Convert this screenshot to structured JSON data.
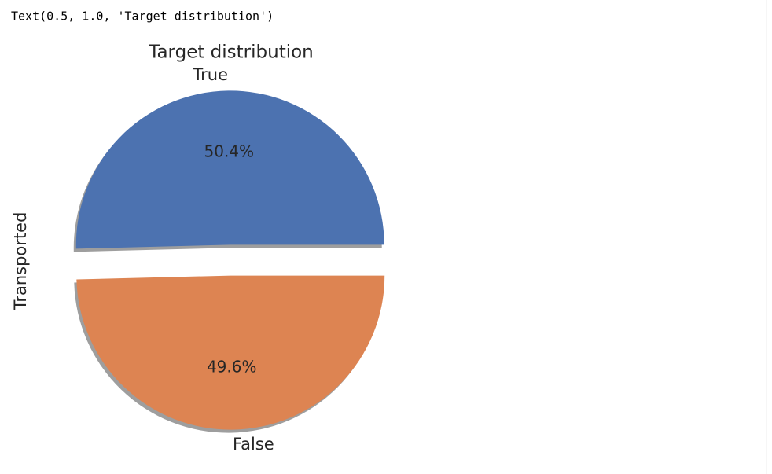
{
  "output_text": "Text(0.5, 1.0, 'Target distribution')",
  "chart_data": {
    "type": "pie",
    "title": "Target distribution",
    "ylabel": "Transported",
    "categories": [
      "True",
      "False"
    ],
    "values": [
      50.4,
      49.6
    ],
    "value_labels": [
      "50.4%",
      "49.6%"
    ],
    "colors": [
      "#4c72b0",
      "#dd8452"
    ]
  }
}
